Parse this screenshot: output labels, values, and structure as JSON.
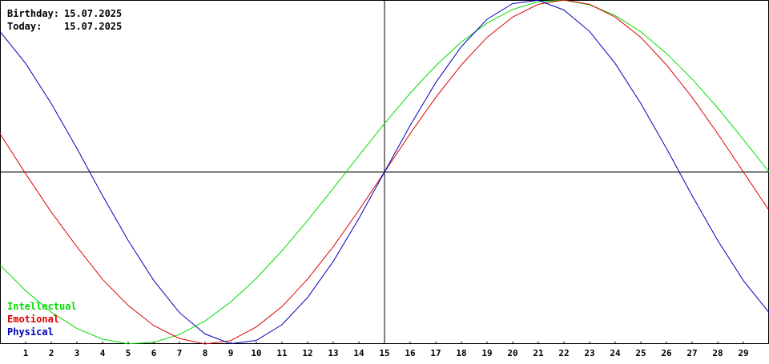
{
  "info": {
    "birthday_label": "Birthday:",
    "birthday_value": "15.07.2025",
    "today_label": "Today:",
    "today_value": "15.07.2025"
  },
  "colors": {
    "intellectual": "#00dd00",
    "emotional": "#dd0000",
    "physical": "#0000bb",
    "axis": "#000000",
    "background": "#ffffff"
  },
  "chart_data": {
    "type": "line",
    "title": "",
    "xlabel": "",
    "ylabel": "",
    "x": [
      0,
      1,
      2,
      3,
      4,
      5,
      6,
      7,
      8,
      9,
      10,
      11,
      12,
      13,
      14,
      15,
      16,
      17,
      18,
      19,
      20,
      21,
      22,
      23,
      24,
      25,
      26,
      27,
      28,
      29,
      30
    ],
    "xlim": [
      0,
      30
    ],
    "ylim": [
      -1,
      1
    ],
    "tick_labels": [
      "1",
      "2",
      "3",
      "4",
      "5",
      "6",
      "7",
      "8",
      "9",
      "10",
      "11",
      "12",
      "13",
      "14",
      "15",
      "16",
      "17",
      "18",
      "19",
      "20",
      "21",
      "22",
      "23",
      "24",
      "25",
      "26",
      "27",
      "28",
      "29"
    ],
    "today_x": 15,
    "legend_position": "bottom-left",
    "grid": false,
    "series": [
      {
        "name": "Intellectual",
        "values": [
          -0.541,
          -0.69,
          -0.815,
          -0.91,
          -0.972,
          -0.999,
          -0.99,
          -0.945,
          -0.866,
          -0.756,
          -0.618,
          -0.458,
          -0.282,
          -0.095,
          0.095,
          0.282,
          0.458,
          0.618,
          0.756,
          0.866,
          0.945,
          0.99,
          0.999,
          0.972,
          0.91,
          0.815,
          0.69,
          0.541,
          0.372,
          0.189,
          0.0
        ]
      },
      {
        "name": "Emotional",
        "values": [
          0.223,
          -0.01,
          -0.233,
          -0.435,
          -0.624,
          -0.776,
          -0.893,
          -0.968,
          -1.0,
          -0.98,
          -0.901,
          -0.783,
          -0.623,
          -0.434,
          -0.223,
          0.0,
          0.223,
          0.434,
          0.623,
          0.783,
          0.901,
          0.975,
          1.0,
          0.975,
          0.901,
          0.783,
          0.623,
          0.434,
          0.223,
          0.0,
          -0.223
        ]
      },
      {
        "name": "Physical",
        "values": [
          0.817,
          0.631,
          0.398,
          0.137,
          -0.137,
          -0.398,
          -0.631,
          -0.817,
          -0.942,
          -0.998,
          -0.979,
          -0.888,
          -0.73,
          -0.52,
          -0.27,
          0.0,
          0.27,
          0.52,
          0.73,
          0.888,
          0.979,
          0.998,
          0.942,
          0.817,
          0.631,
          0.398,
          0.137,
          -0.137,
          -0.398,
          -0.631,
          -0.817
        ]
      }
    ]
  }
}
